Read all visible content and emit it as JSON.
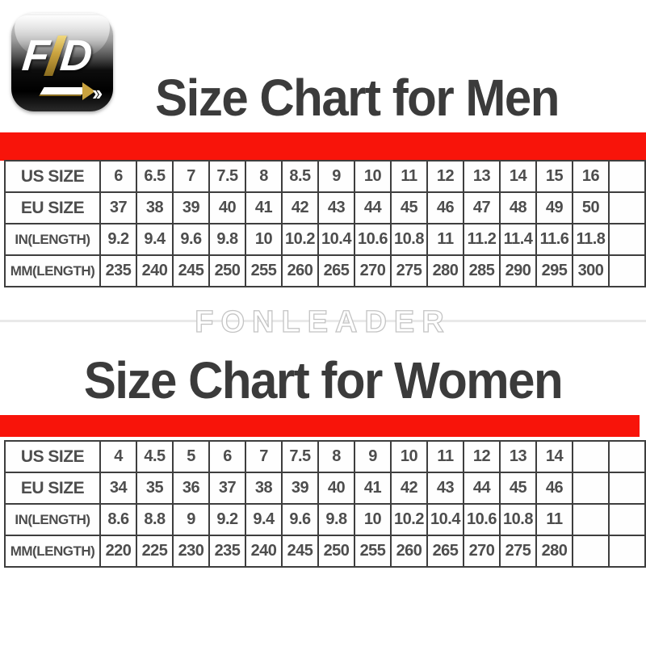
{
  "logo": {
    "letter_f": "F",
    "letter_d": "D",
    "chevrons": "››",
    "brand": "FLD",
    "gold_color": "#c9a23e"
  },
  "watermark": "FONLEADER",
  "colors": {
    "accent_red": "#f8140a",
    "title_gray": "#3b3b3b",
    "table_border": "#3e3e3e",
    "table_text": "#4d4d4d"
  },
  "sections": [
    {
      "title": "Size Chart for Men",
      "table": {
        "trailing_empty_columns": 1,
        "rows": [
          {
            "label": "US SIZE",
            "values": [
              "6",
              "6.5",
              "7",
              "7.5",
              "8",
              "8.5",
              "9",
              "10",
              "11",
              "12",
              "13",
              "14",
              "15",
              "16"
            ]
          },
          {
            "label": "EU SIZE",
            "values": [
              "37",
              "38",
              "39",
              "40",
              "41",
              "42",
              "43",
              "44",
              "45",
              "46",
              "47",
              "48",
              "49",
              "50"
            ]
          },
          {
            "label": "IN(LENGTH)",
            "values": [
              "9.2",
              "9.4",
              "9.6",
              "9.8",
              "10",
              "10.2",
              "10.4",
              "10.6",
              "10.8",
              "11",
              "11.2",
              "11.4",
              "11.6",
              "11.8"
            ]
          },
          {
            "label": "MM(LENGTH)",
            "values": [
              "235",
              "240",
              "245",
              "250",
              "255",
              "260",
              "265",
              "270",
              "275",
              "280",
              "285",
              "290",
              "295",
              "300"
            ]
          }
        ]
      }
    },
    {
      "title": "Size Chart for Women",
      "table": {
        "trailing_empty_columns": 2,
        "rows": [
          {
            "label": "US SIZE",
            "values": [
              "4",
              "4.5",
              "5",
              "6",
              "7",
              "7.5",
              "8",
              "9",
              "10",
              "11",
              "12",
              "13",
              "14"
            ]
          },
          {
            "label": "EU SIZE",
            "values": [
              "34",
              "35",
              "36",
              "37",
              "38",
              "39",
              "40",
              "41",
              "42",
              "43",
              "44",
              "45",
              "46"
            ]
          },
          {
            "label": "IN(LENGTH)",
            "values": [
              "8.6",
              "8.8",
              "9",
              "9.2",
              "9.4",
              "9.6",
              "9.8",
              "10",
              "10.2",
              "10.4",
              "10.6",
              "10.8",
              "11"
            ]
          },
          {
            "label": "MM(LENGTH)",
            "values": [
              "220",
              "225",
              "230",
              "235",
              "240",
              "245",
              "250",
              "255",
              "260",
              "265",
              "270",
              "275",
              "280"
            ]
          }
        ]
      }
    }
  ]
}
